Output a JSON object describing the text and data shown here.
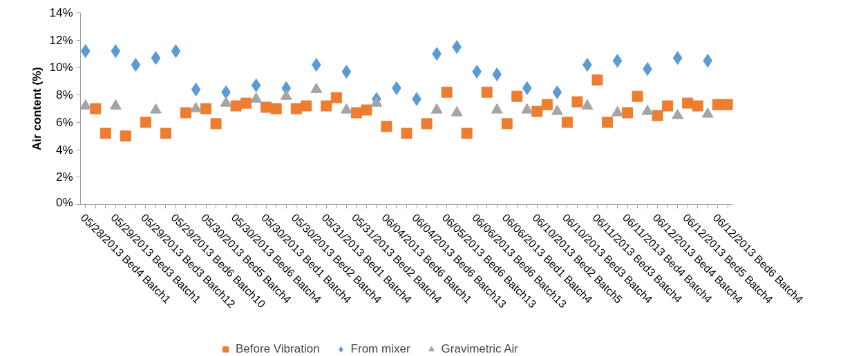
{
  "chart_data": {
    "type": "scatter",
    "ylabel": "Air content (%)",
    "categories": [
      "05/28/2013 Bed4 Batch1",
      null,
      null,
      "05/29/2013 Bed3 Batch1",
      null,
      null,
      "05/29/2013 Bed3 Batch12",
      null,
      null,
      "05/29/2013 Bed6 Batch10",
      null,
      null,
      "05/30/2013 Bed5 Batch4",
      null,
      null,
      "05/30/2013 Bed6 Batch4",
      null,
      null,
      "05/30/2013 Bed1 Batch4",
      null,
      null,
      "05/30/2013 Bed2 Batch4",
      null,
      null,
      "05/31/2013 Bed1 Batch4",
      null,
      null,
      "05/31/2013 Bed2 Batch4",
      null,
      null,
      "06/04/2013 Bed6 Batch1",
      null,
      null,
      "06/04/2013 Bed6 Batch13",
      null,
      null,
      "06/05/2013 Bed6 Batch13",
      null,
      null,
      "06/06/2013 Bed6 Batch13",
      null,
      null,
      "06/06/2013 Bed1 Batch4",
      null,
      null,
      "06/10/2013 Bed2 Batch5",
      null,
      null,
      "06/10/2013 Bed3 Batch4",
      null,
      null,
      "06/11/2013 Bed3 Batch4",
      null,
      null,
      "06/11/2013 Bed4 Batch4",
      null,
      null,
      "06/12/2013 Bed4 Batch4",
      null,
      null,
      "06/12/2013 Bed5 Batch4",
      null,
      null,
      "06/12/2013 Bed6 Batch4",
      null
    ],
    "series": [
      {
        "name": "Before Vibration",
        "color": "#ed7d31",
        "marker": "square",
        "values": [
          null,
          7.0,
          5.2,
          null,
          5.0,
          null,
          6.0,
          null,
          5.2,
          null,
          6.7,
          null,
          7.0,
          5.9,
          null,
          7.2,
          7.4,
          null,
          7.1,
          7.0,
          null,
          7.0,
          7.2,
          null,
          7.2,
          7.8,
          null,
          6.7,
          6.9,
          null,
          5.7,
          null,
          5.2,
          null,
          5.9,
          null,
          8.2,
          null,
          5.2,
          null,
          8.2,
          null,
          5.9,
          7.9,
          null,
          6.8,
          7.3,
          null,
          6.0,
          7.5,
          null,
          9.1,
          6.0,
          null,
          6.7,
          7.9,
          null,
          6.5,
          7.2,
          null,
          7.4,
          7.2,
          null,
          7.3,
          7.3
        ]
      },
      {
        "name": "From mixer",
        "color": "#5b9bd5",
        "marker": "diamond",
        "values": [
          11.2,
          null,
          null,
          11.2,
          null,
          10.2,
          null,
          10.7,
          null,
          11.2,
          null,
          8.4,
          null,
          null,
          8.2,
          null,
          null,
          8.7,
          null,
          null,
          8.5,
          null,
          null,
          10.2,
          null,
          null,
          9.7,
          null,
          null,
          7.7,
          null,
          8.5,
          null,
          7.7,
          null,
          11.0,
          null,
          11.5,
          null,
          9.7,
          null,
          9.5,
          null,
          null,
          8.5,
          null,
          null,
          8.2,
          null,
          null,
          10.2,
          null,
          null,
          10.5,
          null,
          null,
          9.9,
          null,
          null,
          10.7,
          null,
          null,
          10.5,
          null,
          null
        ]
      },
      {
        "name": "Gravimetric Air",
        "color": "#a5a5a5",
        "marker": "triangle",
        "values": [
          7.2,
          null,
          null,
          7.2,
          null,
          null,
          null,
          6.9,
          null,
          null,
          null,
          7.0,
          null,
          null,
          7.4,
          null,
          null,
          7.7,
          null,
          null,
          7.9,
          null,
          null,
          8.4,
          null,
          null,
          6.9,
          null,
          null,
          7.4,
          null,
          null,
          null,
          null,
          null,
          6.9,
          null,
          6.7,
          null,
          null,
          null,
          6.9,
          null,
          null,
          6.9,
          null,
          null,
          6.8,
          null,
          null,
          7.2,
          null,
          null,
          6.7,
          null,
          null,
          6.8,
          null,
          null,
          6.5,
          null,
          null,
          6.6,
          null,
          null
        ]
      }
    ],
    "ylim": [
      0,
      14
    ],
    "yticks": [
      {
        "value": 0,
        "label": "0%"
      },
      {
        "value": 2,
        "label": "2%"
      },
      {
        "value": 4,
        "label": "4%"
      },
      {
        "value": 6,
        "label": "6%"
      },
      {
        "value": 8,
        "label": "8%"
      },
      {
        "value": 10,
        "label": "10%"
      },
      {
        "value": 12,
        "label": "12%"
      },
      {
        "value": 14,
        "label": "14%"
      }
    ],
    "grid": false,
    "legend": "bottom"
  }
}
